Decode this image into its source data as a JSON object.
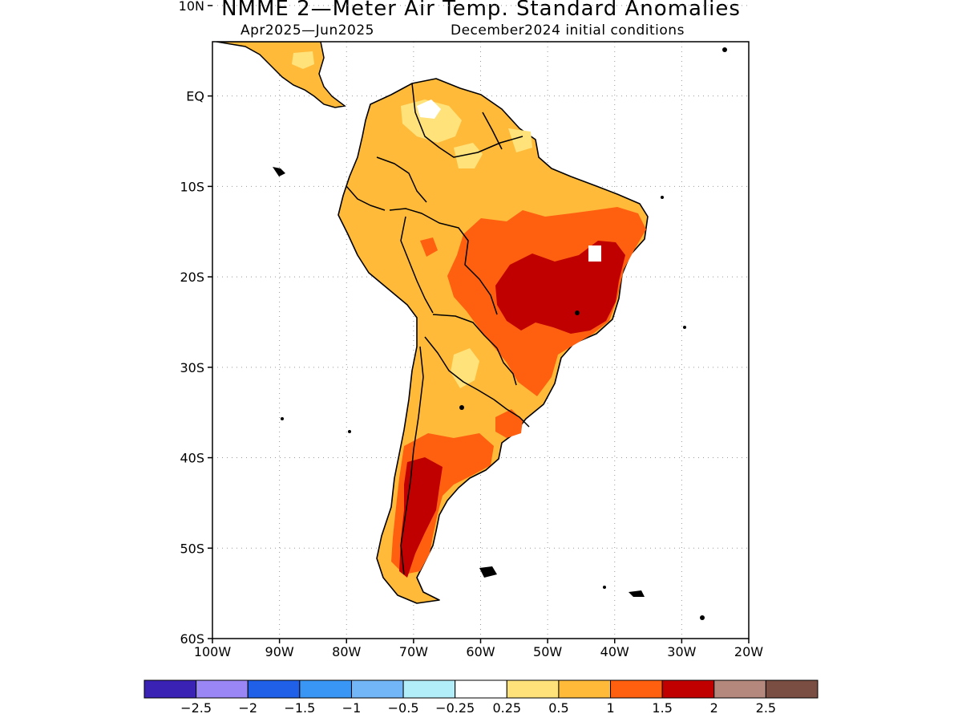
{
  "title": "NMME 2—Meter Air Temp. Standard Anomalies",
  "subtitle_left": "Apr2025—Jun2025",
  "subtitle_right": "December2024 initial conditions",
  "map": {
    "region": "South America",
    "lon_range": [
      -100,
      -20
    ],
    "lat_range": [
      -60,
      6
    ],
    "lat_ticks": [
      {
        "value": 10,
        "label": "10N"
      },
      {
        "value": 0,
        "label": "EQ"
      },
      {
        "value": -10,
        "label": "10S"
      },
      {
        "value": -20,
        "label": "20S"
      },
      {
        "value": -30,
        "label": "30S"
      },
      {
        "value": -40,
        "label": "40S"
      },
      {
        "value": -50,
        "label": "50S"
      },
      {
        "value": -60,
        "label": "60S"
      }
    ],
    "lon_ticks": [
      {
        "value": -100,
        "label": "100W"
      },
      {
        "value": -90,
        "label": "90W"
      },
      {
        "value": -80,
        "label": "80W"
      },
      {
        "value": -70,
        "label": "70W"
      },
      {
        "value": -60,
        "label": "60W"
      },
      {
        "value": -50,
        "label": "50W"
      },
      {
        "value": -40,
        "label": "40W"
      },
      {
        "value": -30,
        "label": "30W"
      },
      {
        "value": -20,
        "label": "20W"
      }
    ],
    "gridlines": "dotted"
  },
  "colorbar": {
    "colors": [
      "#3a22b4",
      "#9a86f4",
      "#2060e8",
      "#3a96f4",
      "#72b6f8",
      "#b2eefa",
      "#ffffff",
      "#ffe27a",
      "#ffba3a",
      "#ff6010",
      "#c00000",
      "#b4887c",
      "#7a4e42"
    ],
    "labels": [
      "−2.5",
      "−2",
      "−1.5",
      "−1",
      "−0.5",
      "−0.25",
      "0.25",
      "0.5",
      "1",
      "1.5",
      "2",
      "2.5"
    ]
  },
  "anomaly_colors": {
    "0.5-1": "#ffba3a",
    "0.25-0.5": "#ffe27a",
    "1-1.5": "#ff6010",
    "1.5-2": "#c00000",
    "near_zero": "#ffffff"
  }
}
